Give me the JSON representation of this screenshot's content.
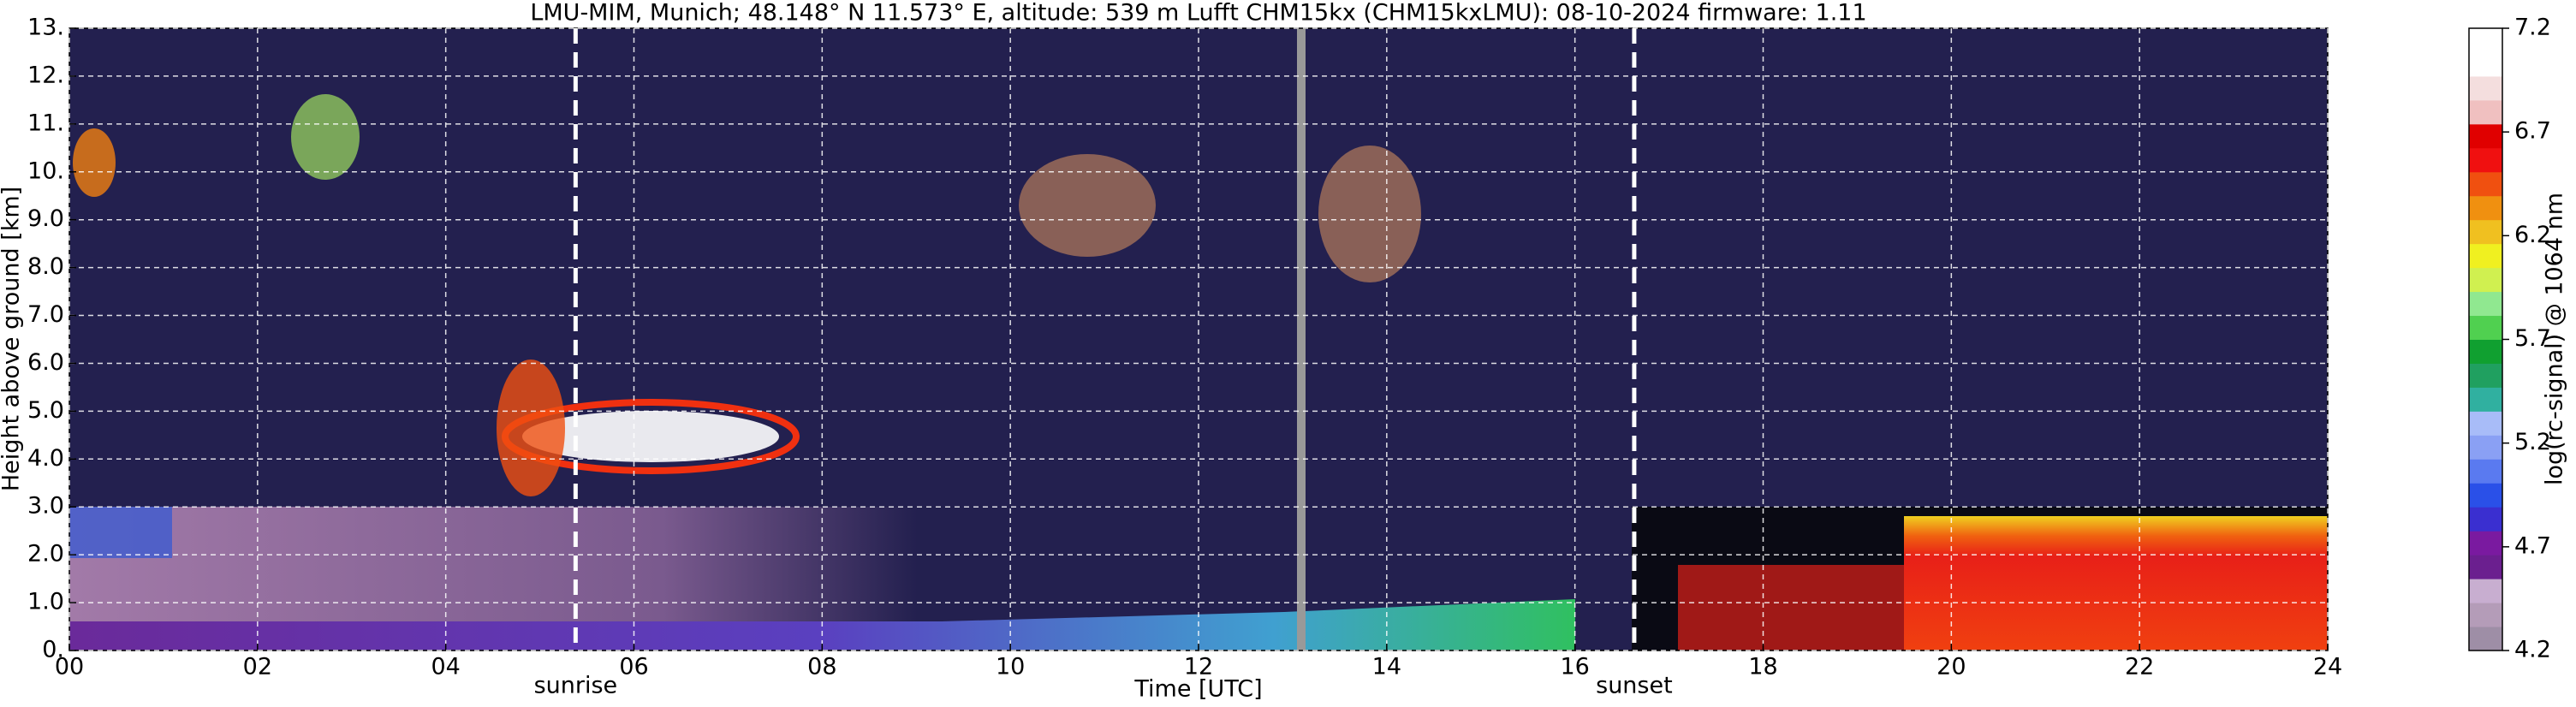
{
  "chart_data": {
    "type": "heatmap",
    "title": "LMU-MIM, Munich; 48.148° N 11.573° E, altitude: 539 m    Lufft CHM15kx (CHM15kxLMU): 08-10-2024    firmware: 1.11",
    "xlabel": "Time [UTC]",
    "ylabel": "Height above ground [km]",
    "xlim": [
      0,
      24
    ],
    "xticks": [
      {
        "value": 0,
        "label": "00"
      },
      {
        "value": 2,
        "label": "02"
      },
      {
        "value": 4,
        "label": "04"
      },
      {
        "value": 6,
        "label": "06"
      },
      {
        "value": 8,
        "label": "08"
      },
      {
        "value": 10,
        "label": "10"
      },
      {
        "value": 12,
        "label": "12"
      },
      {
        "value": 14,
        "label": "14"
      },
      {
        "value": 16,
        "label": "16"
      },
      {
        "value": 18,
        "label": "18"
      },
      {
        "value": 20,
        "label": "20"
      },
      {
        "value": 22,
        "label": "22"
      },
      {
        "value": 24,
        "label": "24"
      }
    ],
    "ylim": [
      0,
      13
    ],
    "yticks": [
      {
        "value": 0,
        "label": "0."
      },
      {
        "value": 1,
        "label": "1.0"
      },
      {
        "value": 2,
        "label": "2.0"
      },
      {
        "value": 3,
        "label": "3.0"
      },
      {
        "value": 4,
        "label": "4.0"
      },
      {
        "value": 5,
        "label": "5.0"
      },
      {
        "value": 6,
        "label": "6.0"
      },
      {
        "value": 7,
        "label": "7.0"
      },
      {
        "value": 8,
        "label": "8.0"
      },
      {
        "value": 9,
        "label": "9.0"
      },
      {
        "value": 10,
        "label": "10."
      },
      {
        "value": 11,
        "label": "11."
      },
      {
        "value": 12,
        "label": "12."
      },
      {
        "value": 13,
        "label": "13."
      }
    ],
    "grid": true,
    "annotations": [
      {
        "text": "sunrise",
        "x": 5.38
      },
      {
        "text": "sunset",
        "x": 16.63
      }
    ],
    "colorbar": {
      "label": "log(rc-signal) @ 1064 nm",
      "lim": [
        4.2,
        7.2
      ],
      "ticks": [
        4.2,
        4.7,
        5.2,
        5.7,
        6.2,
        6.7,
        7.2
      ],
      "colors": [
        "#9e8ea6",
        "#b49cb8",
        "#c8aed0",
        "#6b1f8f",
        "#7a1aa0",
        "#3a2fd0",
        "#2a50e8",
        "#5a7af0",
        "#8aa0f4",
        "#a8bcf8",
        "#30b0a0",
        "#20a060",
        "#10a030",
        "#50d050",
        "#90e890",
        "#d0f050",
        "#f0f020",
        "#f0c020",
        "#f09010",
        "#f05010",
        "#f01010",
        "#e00000",
        "#f0c0c0",
        "#f4dede",
        "#ffffff",
        "#ffffff"
      ]
    }
  }
}
